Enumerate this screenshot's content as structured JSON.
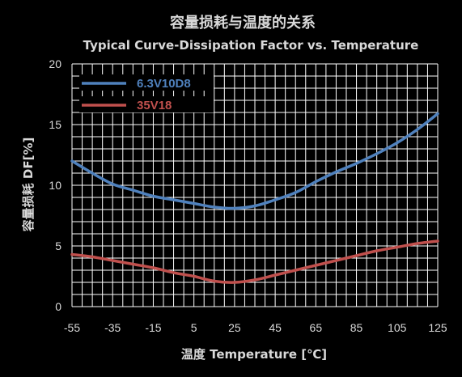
{
  "chart_data": {
    "type": "line",
    "title": "容量损耗与温度的关系",
    "subtitle": "Typical Curve-Dissipation Factor vs. Temperature",
    "xlabel": "温度 Temperature [℃]",
    "ylabel": "容量损耗 DF[%]",
    "x": [
      -55,
      -35,
      -15,
      5,
      25,
      45,
      65,
      85,
      105,
      125
    ],
    "xlim": [
      -55,
      125
    ],
    "ylim": [
      0,
      20
    ],
    "yticks": [
      0,
      5,
      10,
      15,
      20
    ],
    "grid": true,
    "legend_position": "top-left",
    "series": [
      {
        "name": "6.3V10D8",
        "color": "#4f81bd",
        "x": [
          -55,
          -45,
          -35,
          -25,
          -15,
          -5,
          5,
          15,
          25,
          35,
          45,
          55,
          65,
          75,
          85,
          95,
          105,
          115,
          125
        ],
        "values": [
          12.0,
          11.0,
          10.1,
          9.6,
          9.1,
          8.8,
          8.5,
          8.2,
          8.1,
          8.3,
          8.8,
          9.4,
          10.3,
          11.1,
          11.8,
          12.6,
          13.5,
          14.6,
          15.9
        ]
      },
      {
        "name": "35V18",
        "color": "#c0504d",
        "x": [
          -55,
          -45,
          -35,
          -25,
          -15,
          -5,
          5,
          15,
          25,
          35,
          45,
          55,
          65,
          75,
          85,
          95,
          105,
          115,
          125
        ],
        "values": [
          4.3,
          4.1,
          3.8,
          3.5,
          3.2,
          2.8,
          2.5,
          2.1,
          2.0,
          2.2,
          2.6,
          3.0,
          3.4,
          3.8,
          4.2,
          4.6,
          4.9,
          5.2,
          5.4
        ]
      }
    ]
  }
}
